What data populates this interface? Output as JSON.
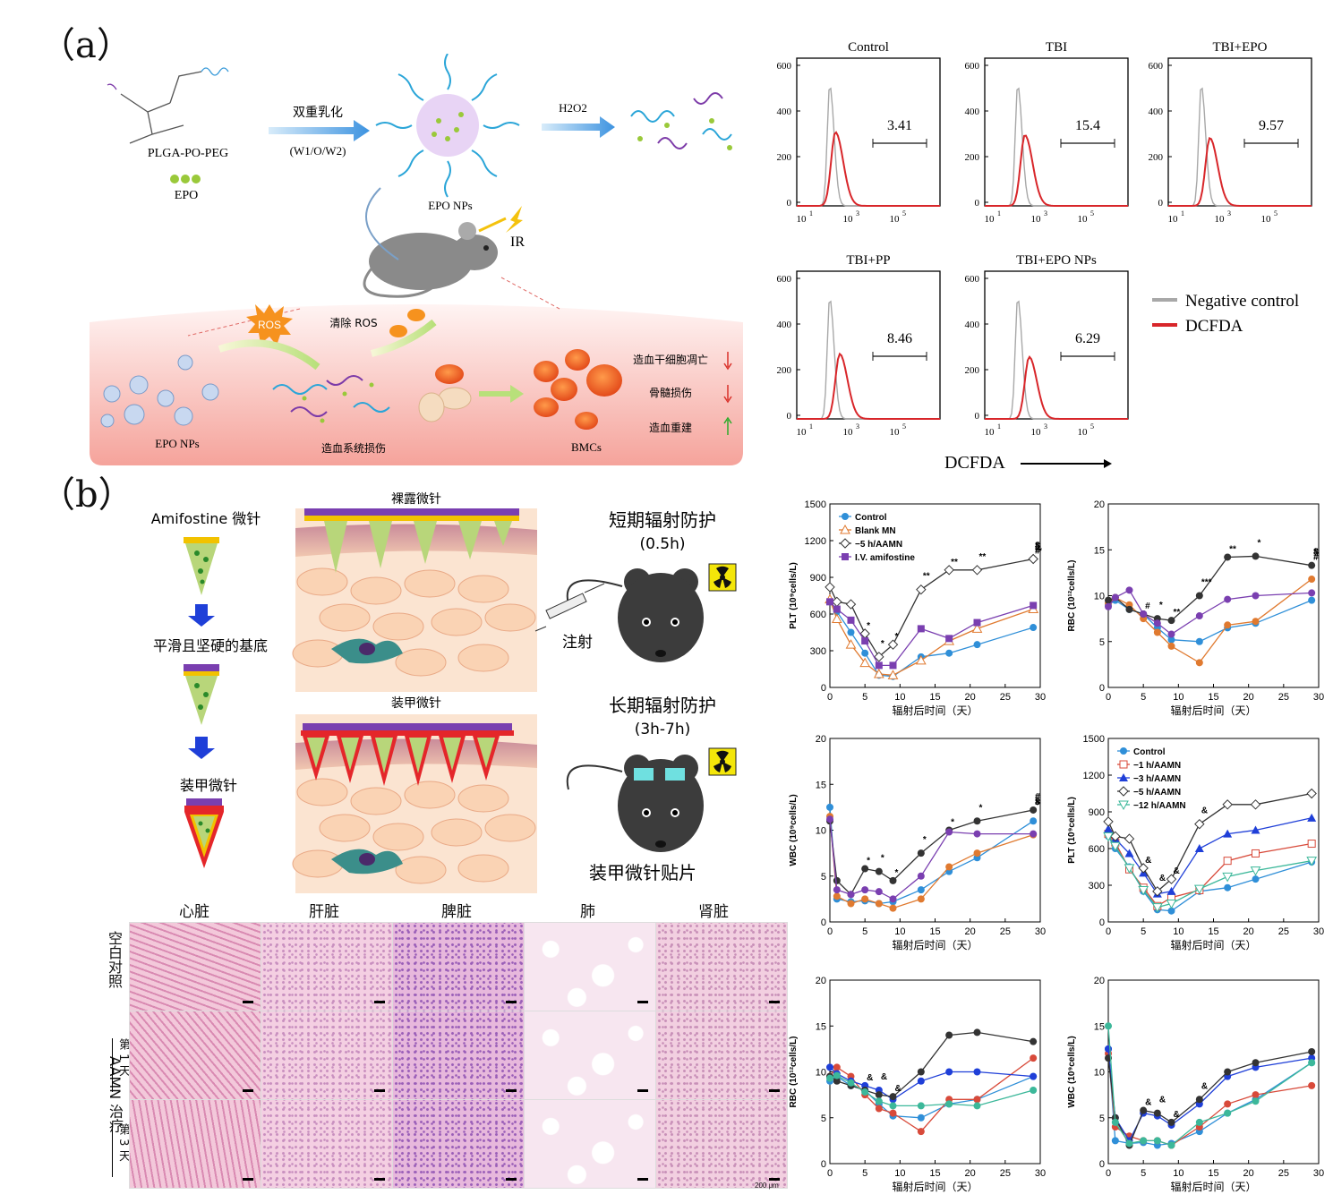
{
  "panel_a": {
    "label": "（a）",
    "schematic": {
      "polymer": "PLGA-PO-PEG",
      "drug": "EPO",
      "step1_top": "双重乳化",
      "step1_bottom": "(W1/O/W2)",
      "nanoparticles": "EPO NPs",
      "trigger": "H2O2",
      "radiation": "IR",
      "ros": "ROS",
      "clear_ros": "清除 ROS",
      "np_label_bottom": "EPO NPs",
      "damage": "造血系统损伤",
      "bmcs": "BMCs",
      "effects": [
        "造血干细胞凋亡",
        "骨髓损伤",
        "造血重建"
      ]
    },
    "flow": {
      "panels": [
        {
          "title": "Control",
          "value": "3.41"
        },
        {
          "title": "TBI",
          "value": "15.4"
        },
        {
          "title": "TBI+EPO",
          "value": "9.57"
        },
        {
          "title": "TBI+PP",
          "value": "8.46"
        },
        {
          "title": "TBI+EPO NPs",
          "value": "6.29"
        }
      ],
      "y_ticks": [
        "600",
        "400",
        "200",
        "0"
      ],
      "x_ticks": [
        "10",
        "10",
        "10"
      ],
      "x_exps": [
        "1",
        "3",
        "5"
      ],
      "legend": [
        {
          "name": "Negative control",
          "color": "#a8a8a8"
        },
        {
          "name": "DCFDA",
          "color": "#d8262a"
        }
      ],
      "xlabel": "DCFDA"
    }
  },
  "panel_b": {
    "label": "（b）",
    "schematic": {
      "mn_title": "Amifostine 微针",
      "base_label": "平滑且坚硬的基底",
      "armored_label": "装甲微针",
      "bare_title": "裸露微针",
      "armored_title": "装甲微针",
      "short_term": "短期辐射防护",
      "short_time": "(0.5h)",
      "inject": "注射",
      "long_term": "长期辐射防护",
      "long_time": "(3h-7h)",
      "patch": "装甲微针贴片"
    },
    "histology": {
      "columns": [
        "心脏",
        "肝脏",
        "脾脏",
        "肺",
        "肾脏"
      ],
      "row_blank": "空白对照",
      "row_group": "AAMN 治疗",
      "row_day1": "第 1 天",
      "row_day3": "第 3 天",
      "scale": "200 μm"
    }
  },
  "colors": {
    "control": "#2f8fd8",
    "blank_mn": "#e07a30",
    "aamn5": "#333333",
    "iv_amifostine": "#7a3fb0",
    "aamn1": "#d84a3a",
    "aamn3": "#1f3fd8",
    "aamn12": "#3cb89a"
  },
  "chart_data": [
    {
      "type": "line",
      "ylabel": "PLT (10⁹cells/L)",
      "xlabel": "辐射后时间（天）",
      "xlim": [
        0,
        30
      ],
      "ylim": [
        0,
        1500
      ],
      "yticks": [
        0,
        300,
        600,
        900,
        1200,
        1500
      ],
      "x": [
        0,
        1,
        3,
        5,
        7,
        9,
        13,
        17,
        21,
        29
      ],
      "series": [
        {
          "name": "Control",
          "color": "#2f8fd8",
          "marker": "circle",
          "values": [
            700,
            620,
            450,
            280,
            100,
            90,
            250,
            280,
            350,
            490
          ]
        },
        {
          "name": "Blank MN",
          "color": "#e07a30",
          "marker": "tri-open",
          "values": [
            720,
            560,
            350,
            200,
            110,
            100,
            220,
            380,
            480,
            640
          ]
        },
        {
          "name": "−5 h/AAMN",
          "color": "#333333",
          "marker": "diamond-open",
          "values": [
            820,
            700,
            680,
            440,
            250,
            350,
            800,
            960,
            960,
            1050
          ]
        },
        {
          "name": "I.V. amifostine",
          "color": "#7a3fb0",
          "marker": "square",
          "values": [
            700,
            640,
            550,
            380,
            180,
            180,
            480,
            400,
            530,
            670
          ]
        }
      ],
      "annotations": [
        "*",
        "*",
        "*",
        "**",
        "**",
        "**",
        "**",
        "#",
        "#",
        "#",
        "#",
        "$"
      ]
    },
    {
      "type": "line",
      "ylabel": "RBC (10¹²cells/L)",
      "xlabel": "辐射后时间（天）",
      "xlim": [
        0,
        30
      ],
      "ylim": [
        0,
        20
      ],
      "yticks": [
        0,
        5,
        10,
        15,
        20
      ],
      "x": [
        0,
        1,
        3,
        5,
        7,
        9,
        13,
        17,
        21,
        29
      ],
      "series": [
        {
          "name": "Control",
          "color": "#2f8fd8",
          "values": [
            9.0,
            9.5,
            8.5,
            8.0,
            6.5,
            5.2,
            5.0,
            6.5,
            7.0,
            9.5
          ]
        },
        {
          "name": "Blank MN",
          "color": "#e07a30",
          "values": [
            9.2,
            9.8,
            9.0,
            7.5,
            6.0,
            4.5,
            2.7,
            6.8,
            7.2,
            11.8
          ]
        },
        {
          "name": "−5 h/AAMN",
          "color": "#333333",
          "values": [
            9.5,
            9.8,
            8.5,
            8.0,
            7.5,
            7.3,
            10.0,
            14.2,
            14.3,
            13.3
          ]
        },
        {
          "name": "I.V. amifostine",
          "color": "#7a3fb0",
          "values": [
            8.8,
            9.8,
            10.6,
            8.0,
            7.0,
            5.8,
            7.8,
            9.6,
            10.0,
            10.3
          ]
        }
      ],
      "annotations": [
        "#",
        "*",
        "**",
        "***",
        "**",
        "*",
        "#",
        "#",
        "#",
        "$"
      ]
    },
    {
      "type": "line",
      "ylabel": "WBC (10⁹cells/L)",
      "xlabel": "辐射后时间（天）",
      "xlim": [
        0,
        30
      ],
      "ylim": [
        0,
        20
      ],
      "yticks": [
        0,
        5,
        10,
        15,
        20
      ],
      "x": [
        0,
        1,
        3,
        5,
        7,
        9,
        13,
        17,
        21,
        29
      ],
      "series": [
        {
          "name": "Control",
          "color": "#2f8fd8",
          "values": [
            12.5,
            2.5,
            2.2,
            2.3,
            2.0,
            2.2,
            3.5,
            5.5,
            7.0,
            11.0
          ]
        },
        {
          "name": "Blank MN",
          "color": "#e07a30",
          "values": [
            11.5,
            2.8,
            2.0,
            2.5,
            2.0,
            1.5,
            2.5,
            6.0,
            7.5,
            9.5
          ]
        },
        {
          "name": "−5 h/AAMN",
          "color": "#333333",
          "values": [
            11.0,
            4.5,
            3.0,
            5.8,
            5.5,
            4.5,
            7.5,
            10.0,
            11.0,
            12.2
          ]
        },
        {
          "name": "I.V. amifostine",
          "color": "#7a3fb0",
          "values": [
            11.2,
            3.5,
            3.0,
            3.5,
            3.3,
            2.5,
            5.0,
            9.8,
            9.6,
            9.6
          ]
        }
      ],
      "annotations": [
        "*",
        "*",
        "*",
        "*",
        "*",
        "*",
        "#",
        "#",
        "#",
        "#",
        "$"
      ]
    },
    {
      "type": "line",
      "ylabel": "PLT (10⁹cells/L)",
      "xlabel": "辐射后时间（天）",
      "xlim": [
        0,
        30
      ],
      "ylim": [
        0,
        1500
      ],
      "yticks": [
        0,
        300,
        600,
        900,
        1200,
        1500
      ],
      "x": [
        0,
        1,
        3,
        5,
        7,
        9,
        13,
        17,
        21,
        29
      ],
      "series": [
        {
          "name": "Control",
          "color": "#2f8fd8",
          "marker": "circle",
          "values": [
            700,
            600,
            450,
            250,
            100,
            90,
            250,
            280,
            350,
            490
          ]
        },
        {
          "name": "−1 h/AAMN",
          "color": "#d84a3a",
          "marker": "square-open",
          "values": [
            720,
            650,
            430,
            280,
            130,
            200,
            260,
            500,
            560,
            640
          ]
        },
        {
          "name": "−3 h/AAMN",
          "color": "#1f3fd8",
          "marker": "tri",
          "values": [
            760,
            680,
            560,
            400,
            230,
            250,
            600,
            720,
            750,
            850
          ]
        },
        {
          "name": "−5 h/AAMN",
          "color": "#333333",
          "marker": "diamond-open",
          "values": [
            820,
            700,
            680,
            440,
            250,
            350,
            800,
            960,
            960,
            1050
          ]
        },
        {
          "name": "−12 h/AAMN",
          "color": "#3cb89a",
          "marker": "tri-down-open",
          "values": [
            700,
            620,
            440,
            260,
            120,
            150,
            270,
            370,
            420,
            500
          ]
        }
      ],
      "annotations": [
        "&",
        "&",
        "&",
        "&"
      ]
    },
    {
      "type": "line",
      "ylabel": "RBC (10¹²cells/L)",
      "xlabel": "辐射后时间（天）",
      "xlim": [
        0,
        30
      ],
      "ylim": [
        0,
        20
      ],
      "yticks": [
        0,
        5,
        10,
        15,
        20
      ],
      "x": [
        0,
        1,
        3,
        5,
        7,
        9,
        13,
        17,
        21,
        29
      ],
      "series": [
        {
          "name": "Control",
          "color": "#2f8fd8",
          "values": [
            9.0,
            9.5,
            8.5,
            8.0,
            6.5,
            5.2,
            5.0,
            6.5,
            7.0,
            9.5
          ]
        },
        {
          "name": "−1 h/AAMN",
          "color": "#d84a3a",
          "values": [
            9.5,
            10.5,
            9.5,
            7.5,
            6.0,
            5.5,
            3.5,
            7.0,
            7.0,
            11.5
          ]
        },
        {
          "name": "−3 h/AAMN",
          "color": "#1f3fd8",
          "values": [
            10.5,
            9.8,
            9.0,
            8.5,
            8.0,
            7.0,
            9.0,
            10.0,
            10.0,
            9.5
          ]
        },
        {
          "name": "−5 h/AAMN",
          "color": "#333333",
          "values": [
            9.5,
            9.0,
            8.5,
            8.0,
            7.5,
            7.3,
            10.0,
            14.0,
            14.3,
            13.3
          ]
        },
        {
          "name": "−12 h/AAMN",
          "color": "#3cb89a",
          "values": [
            9.3,
            9.6,
            8.8,
            7.8,
            6.8,
            6.3,
            6.3,
            6.5,
            6.3,
            8.0
          ]
        }
      ],
      "annotations": [
        "&",
        "&",
        "&"
      ]
    },
    {
      "type": "line",
      "ylabel": "WBC (10⁹cells/L)",
      "xlabel": "辐射后时间（天）",
      "xlim": [
        0,
        30
      ],
      "ylim": [
        0,
        20
      ],
      "yticks": [
        0,
        5,
        10,
        15,
        20
      ],
      "x": [
        0,
        1,
        3,
        5,
        7,
        9,
        13,
        17,
        21,
        29
      ],
      "series": [
        {
          "name": "Control",
          "color": "#2f8fd8",
          "values": [
            12.5,
            2.5,
            2.2,
            2.3,
            2.0,
            2.2,
            3.5,
            5.5,
            7.0,
            11.0
          ]
        },
        {
          "name": "−1 h/AAMN",
          "color": "#d84a3a",
          "values": [
            12.0,
            4.0,
            3.0,
            2.5,
            2.5,
            2.0,
            4.0,
            6.5,
            7.5,
            8.5
          ]
        },
        {
          "name": "−3 h/AAMN",
          "color": "#1f3fd8",
          "values": [
            12.5,
            5.0,
            2.5,
            5.5,
            5.2,
            4.2,
            6.5,
            9.5,
            10.5,
            11.5
          ]
        },
        {
          "name": "−5 h/AAMN",
          "color": "#333333",
          "values": [
            11.5,
            5.0,
            2.0,
            5.8,
            5.5,
            4.5,
            7.0,
            10.0,
            11.0,
            12.2
          ]
        },
        {
          "name": "−12 h/AAMN",
          "color": "#3cb89a",
          "values": [
            15.0,
            4.5,
            2.2,
            2.5,
            2.5,
            2.0,
            4.5,
            5.5,
            6.8,
            11.0
          ]
        }
      ],
      "annotations": [
        "&",
        "&",
        "&",
        "&"
      ]
    }
  ]
}
